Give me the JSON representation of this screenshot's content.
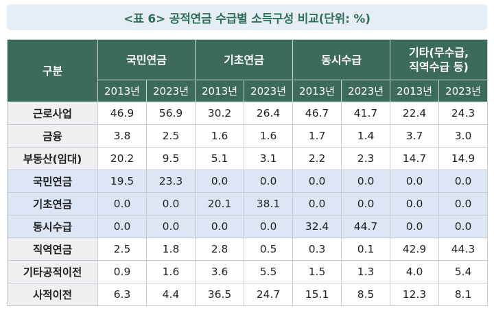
{
  "title": "<표 6> 공적연금 수급별 소득구성 비교(단위: %)",
  "table": {
    "corner_label": "구분",
    "groups": [
      "국민연금",
      "기초연금",
      "동시수급",
      "기타(무수급,",
      "직역수급 등)"
    ],
    "years": [
      "2013년",
      "2023년"
    ],
    "rows": [
      {
        "label": "근로사업",
        "values": [
          "46.9",
          "56.9",
          "30.2",
          "26.4",
          "46.7",
          "41.7",
          "22.4",
          "24.3"
        ]
      },
      {
        "label": "금융",
        "values": [
          "3.8",
          "2.5",
          "1.6",
          "1.6",
          "1.7",
          "1.4",
          "3.7",
          "3.0"
        ]
      },
      {
        "label": "부동산(임대)",
        "values": [
          "20.2",
          "9.5",
          "5.1",
          "3.1",
          "2.2",
          "2.3",
          "14.7",
          "14.9"
        ]
      },
      {
        "label": "국민연금",
        "values": [
          "19.5",
          "23.3",
          "0.0",
          "0.0",
          "0.0",
          "0.0",
          "0.0",
          "0.0"
        ]
      },
      {
        "label": "기초연금",
        "values": [
          "0.0",
          "0.0",
          "20.1",
          "38.1",
          "0.0",
          "0.0",
          "0.0",
          "0.0"
        ]
      },
      {
        "label": "동시수급",
        "values": [
          "0.0",
          "0.0",
          "0.0",
          "0.0",
          "32.4",
          "44.7",
          "0.0",
          "0.0"
        ]
      },
      {
        "label": "직역연금",
        "values": [
          "2.5",
          "1.8",
          "2.8",
          "0.5",
          "0.3",
          "0.1",
          "42.9",
          "44.3"
        ]
      },
      {
        "label": "기타공적이전",
        "values": [
          "0.9",
          "1.6",
          "3.6",
          "5.5",
          "1.5",
          "1.3",
          "4.0",
          "5.4"
        ]
      },
      {
        "label": "사적이전",
        "values": [
          "6.3",
          "4.4",
          "36.5",
          "24.7",
          "15.1",
          "8.5",
          "12.3",
          "8.1"
        ]
      }
    ],
    "highlight_rows": [
      3,
      4,
      5
    ]
  },
  "colors": {
    "header_bg": "#3d6b59",
    "title_text": "#2f6f5e",
    "title_bg": "#e6edf3",
    "highlight_bg": "#dde6f4"
  }
}
